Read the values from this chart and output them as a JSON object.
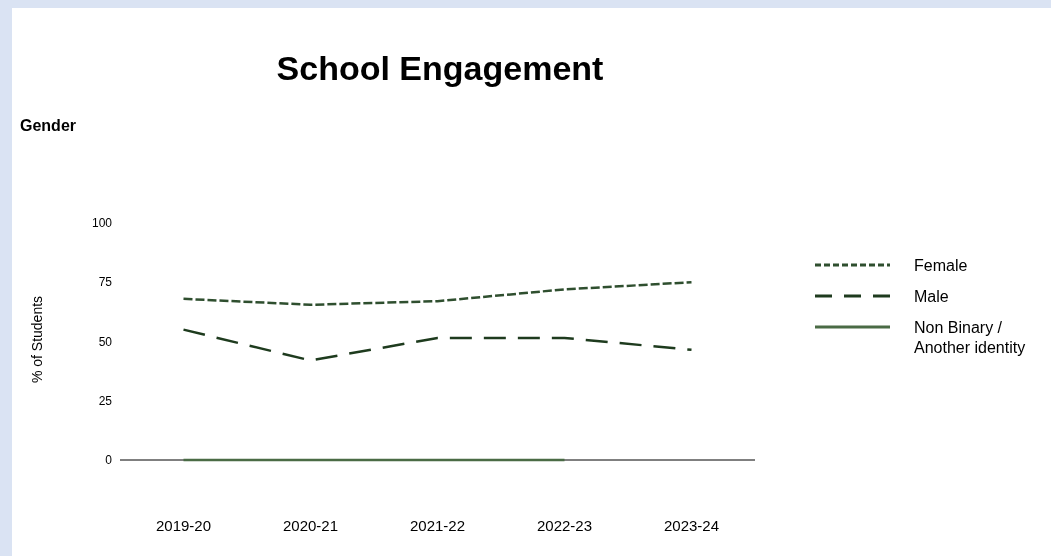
{
  "chart_data": {
    "type": "line",
    "title": "School Engagement",
    "subtitle": "Gender",
    "ylabel": "% of Students",
    "categories": [
      "2019-20",
      "2020-21",
      "2021-22",
      "2022-23",
      "2023-24"
    ],
    "series": [
      {
        "name": "Female",
        "color": "#2f4f2f",
        "line_style": "dotted",
        "values": [
          68,
          65.5,
          67,
          72,
          75
        ]
      },
      {
        "name": "Male",
        "color": "#1e3b1e",
        "line_style": "dashed",
        "values": [
          55,
          42,
          51.5,
          51.5,
          46.5
        ]
      },
      {
        "name": "Non Binary / Another identity",
        "color": "#4a6b45",
        "line_style": "solid",
        "values": [
          0,
          0,
          0,
          0,
          null
        ]
      }
    ],
    "ylim": [
      0,
      100
    ],
    "yticks": [
      0,
      25,
      50,
      75,
      100
    ],
    "grid": false,
    "legend": "right",
    "marker": "none"
  }
}
